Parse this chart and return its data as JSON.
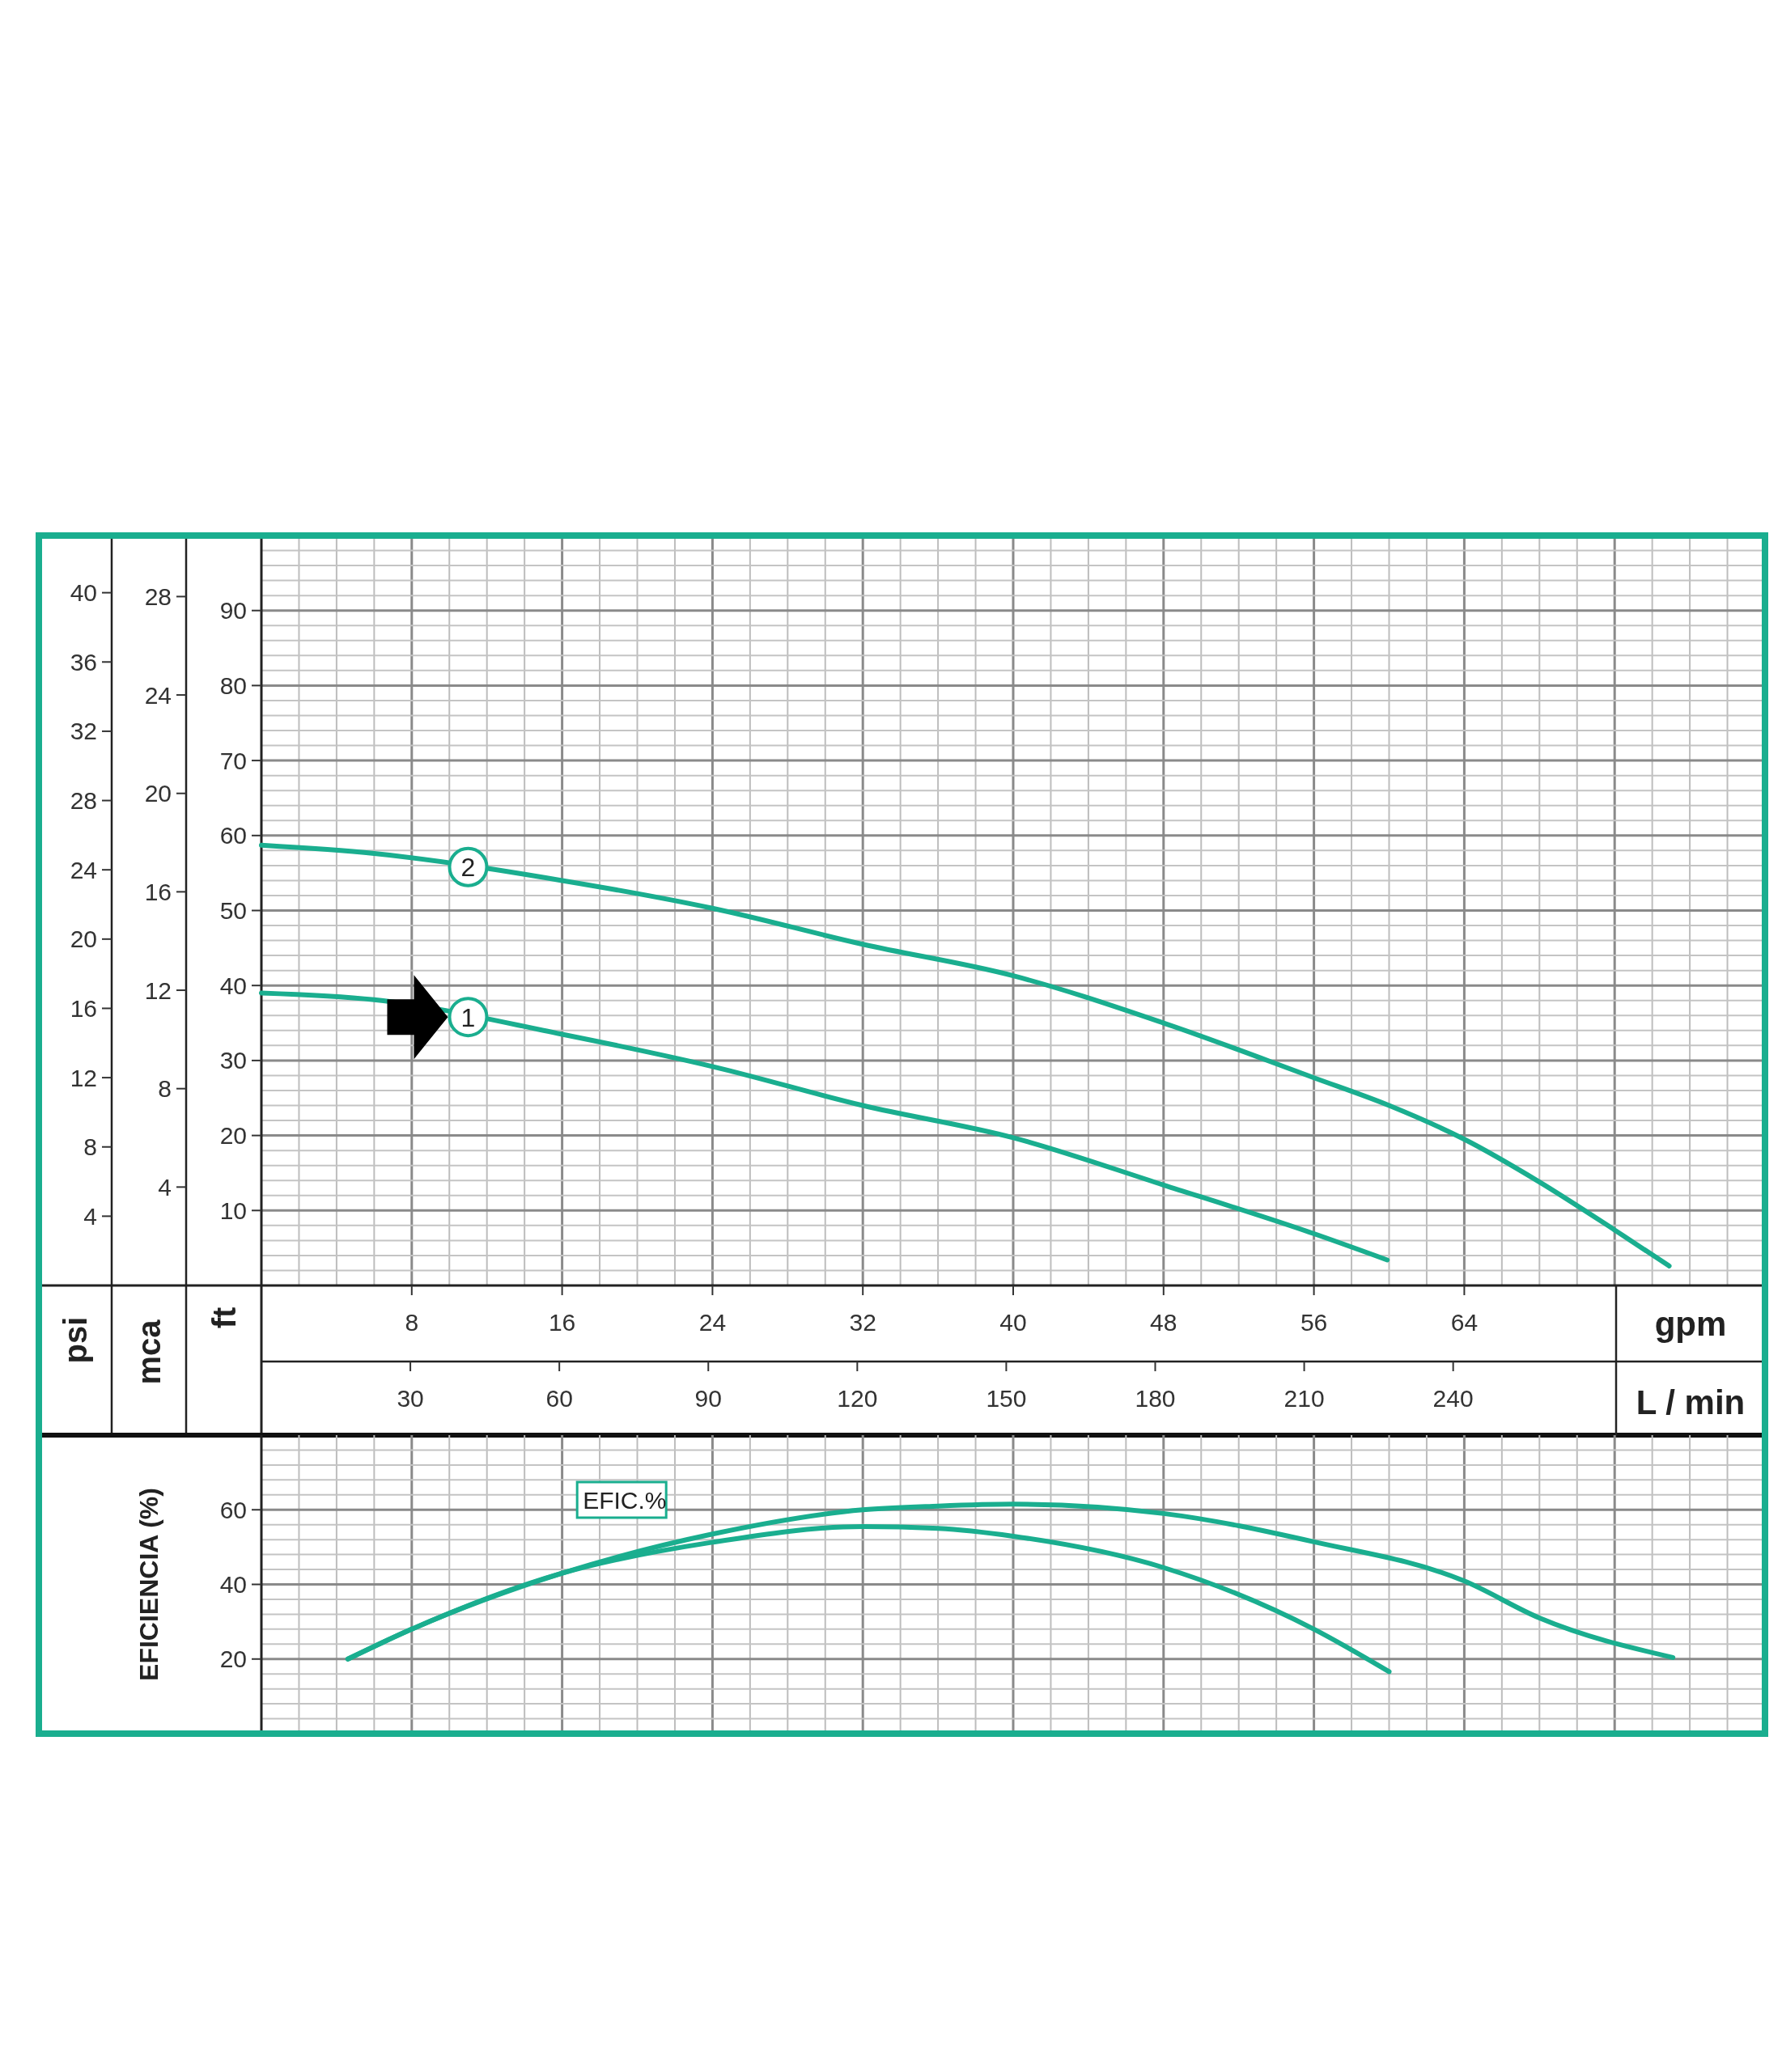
{
  "chart_data": [
    {
      "type": "line",
      "xlabel": "gpm",
      "x2label": "L / min",
      "ylabel": "ft",
      "y2label": "mca",
      "y3label": "psi",
      "xlim": [
        0,
        80
      ],
      "xticks": [
        8,
        16,
        24,
        32,
        40,
        48,
        56,
        64
      ],
      "x2lim": [
        0,
        302.8
      ],
      "x2ticks": [
        30,
        60,
        90,
        120,
        150,
        180,
        210,
        240
      ],
      "ylim": [
        0,
        100
      ],
      "yticks": [
        10,
        20,
        30,
        40,
        50,
        60,
        70,
        80,
        90
      ],
      "y2lim": [
        0,
        30.48
      ],
      "y2ticks": [
        4,
        8,
        12,
        16,
        20,
        24,
        28
      ],
      "y3lim": [
        0,
        43.3
      ],
      "y3ticks": [
        4,
        8,
        12,
        16,
        20,
        24,
        28,
        32,
        36,
        40
      ],
      "grid": true,
      "legend": false,
      "marker": "none",
      "series": [
        {
          "name": "1",
          "color": "#1aae8f",
          "x": [
            0,
            6,
            16,
            24,
            32,
            40,
            48,
            56,
            59.9
          ],
          "values": [
            39,
            38.1,
            33.5,
            29.2,
            24,
            19.7,
            13.4,
            6.9,
            3.4
          ]
        },
        {
          "name": "2",
          "color": "#1aae8f",
          "x": [
            0,
            6,
            16,
            24,
            32,
            40,
            48,
            56,
            60,
            64,
            68,
            72,
            74.9
          ],
          "values": [
            58.7,
            57.6,
            54,
            50.3,
            45.5,
            41.3,
            35,
            27.7,
            24,
            19.5,
            13.8,
            7.4,
            2.6
          ]
        }
      ]
    },
    {
      "type": "line",
      "ylabel": "EFICIENCIA (%)",
      "xlim": [
        0,
        80
      ],
      "ylim": [
        0,
        80
      ],
      "yticks": [
        20,
        40,
        60
      ],
      "tick_labels": "y",
      "grid": true,
      "legend": false,
      "marker": "none",
      "annotations": [
        "EFIC.%"
      ],
      "series": [
        {
          "color": "#1aae8f",
          "x": [
            4.6,
            8,
            16,
            24,
            32,
            36,
            40,
            48,
            56,
            60
          ],
          "values": [
            20,
            28,
            43,
            51.3,
            55.5,
            55,
            52.9,
            44.5,
            28,
            16.6
          ]
        },
        {
          "color": "#1aae8f",
          "x": [
            4.6,
            8,
            16,
            24,
            32,
            36,
            40,
            48,
            56,
            64,
            68,
            75.1
          ],
          "values": [
            20,
            28,
            43,
            53.5,
            60,
            61,
            61.5,
            59,
            51.4,
            40.9,
            31,
            20.4
          ]
        }
      ]
    }
  ]
}
